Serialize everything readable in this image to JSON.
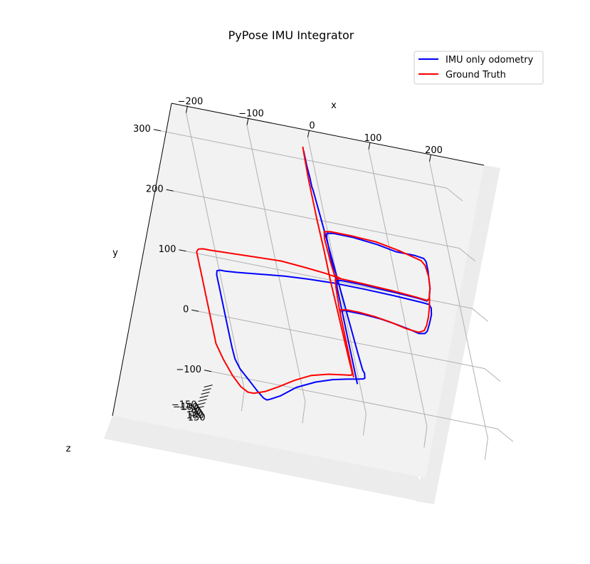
{
  "chart_data": {
    "type": "line",
    "projection": "3d",
    "title": "PyPose IMU Integrator",
    "xlabel": "x",
    "ylabel": "y",
    "zlabel": "z",
    "xlim": [
      -250,
      220
    ],
    "ylim": [
      -120,
      340
    ],
    "x_ticks": [
      "−200",
      "−100",
      "0",
      "100",
      "200"
    ],
    "y_ticks": [
      "−100",
      "0",
      "100",
      "200",
      "300"
    ],
    "z_ticks": [
      "150",
      "100",
      "50",
      "0",
      "−50",
      "−100",
      "−150"
    ],
    "grid": true,
    "legend_position": "top-right",
    "series": [
      {
        "name": "IMU only odometry",
        "color": "#0000ff",
        "points": [
          [
            -12,
            315
          ],
          [
            -12,
            305
          ],
          [
            -12,
            290
          ],
          [
            -11,
            270
          ],
          [
            -11,
            255
          ],
          [
            -10,
            250
          ],
          [
            -8,
            220
          ],
          [
            -6,
            190
          ],
          [
            -4,
            160
          ],
          [
            -2,
            130
          ],
          [
            0,
            100
          ],
          [
            2,
            70
          ],
          [
            4,
            40
          ],
          [
            6,
            10
          ],
          [
            8,
            -20
          ],
          [
            10,
            -45
          ],
          [
            12,
            -50
          ],
          [
            11,
            -58
          ],
          [
            8,
            -60
          ],
          [
            0,
            -62
          ],
          [
            -20,
            -66
          ],
          [
            -45,
            -72
          ],
          [
            -75,
            -82
          ],
          [
            -110,
            -98
          ],
          [
            -140,
            -118
          ],
          [
            -160,
            -128
          ],
          [
            -165,
            -130
          ],
          [
            -170,
            -128
          ],
          [
            -178,
            -118
          ],
          [
            -190,
            -100
          ],
          [
            -200,
            -85
          ],
          [
            -205,
            -70
          ],
          [
            -206,
            -50
          ],
          [
            -206,
            -20
          ],
          [
            -206,
            10
          ],
          [
            -206,
            50
          ],
          [
            -206,
            70
          ],
          [
            -204,
            77
          ],
          [
            -198,
            79
          ],
          [
            -190,
            79
          ],
          [
            -170,
            81
          ],
          [
            -130,
            86
          ],
          [
            -90,
            91
          ],
          [
            -50,
            94
          ],
          [
            -10,
            96
          ],
          [
            40,
            96
          ],
          [
            90,
            95
          ],
          [
            135,
            93
          ],
          [
            148,
            92
          ],
          [
            150,
            86
          ],
          [
            148,
            75
          ],
          [
            142,
            60
          ],
          [
            135,
            45
          ],
          [
            130,
            40
          ],
          [
            120,
            38
          ],
          [
            105,
            42
          ],
          [
            85,
            46
          ],
          [
            60,
            50
          ],
          [
            30,
            52
          ],
          [
            10,
            52
          ],
          [
            -2,
            52
          ],
          [
            -4,
            48
          ],
          [
            -4,
            40
          ],
          [
            -4,
            30
          ],
          [
            -4,
            -20
          ],
          [
            -4,
            -70
          ],
          [
            -4,
            48
          ],
          [
            -4,
            90
          ],
          [
            -2,
            101
          ],
          [
            5,
            103
          ],
          [
            40,
            103
          ],
          [
            90,
            101
          ],
          [
            130,
            99
          ],
          [
            145,
            97
          ],
          [
            150,
            102
          ],
          [
            155,
            120
          ],
          [
            158,
            150
          ],
          [
            158,
            165
          ],
          [
            155,
            170
          ],
          [
            140,
            172
          ],
          [
            110,
            172
          ],
          [
            80,
            178
          ],
          [
            40,
            182
          ],
          [
            10,
            182
          ],
          [
            -2,
            180
          ],
          [
            -4,
            172
          ],
          [
            -4,
            110
          ],
          [
            -2,
            101
          ],
          [
            5,
            103
          ]
        ]
      },
      {
        "name": "Ground Truth",
        "color": "#ff0000",
        "points": [
          [
            -12,
            322
          ],
          [
            -13,
            300
          ],
          [
            -14,
            270
          ],
          [
            -14,
            240
          ],
          [
            -14,
            200
          ],
          [
            -13,
            150
          ],
          [
            -13,
            100
          ],
          [
            -12,
            60
          ],
          [
            -11,
            20
          ],
          [
            -10,
            -20
          ],
          [
            -9,
            -50
          ],
          [
            -9,
            -55
          ],
          [
            -12,
            -58
          ],
          [
            -25,
            -60
          ],
          [
            -50,
            -64
          ],
          [
            -80,
            -72
          ],
          [
            -110,
            -86
          ],
          [
            -140,
            -103
          ],
          [
            -165,
            -116
          ],
          [
            -185,
            -123
          ],
          [
            -195,
            -123
          ],
          [
            -205,
            -116
          ],
          [
            -215,
            -100
          ],
          [
            -225,
            -75
          ],
          [
            -232,
            -50
          ],
          [
            -232,
            -20
          ],
          [
            -232,
            20
          ],
          [
            -232,
            60
          ],
          [
            -232,
            90
          ],
          [
            -232,
            103
          ],
          [
            -228,
            108
          ],
          [
            -220,
            110
          ],
          [
            -210,
            110
          ],
          [
            -170,
            112
          ],
          [
            -130,
            114
          ],
          [
            -90,
            116
          ],
          [
            -50,
            113
          ],
          [
            -20,
            110
          ],
          [
            0,
            107
          ],
          [
            5,
            106
          ],
          [
            40,
            105
          ],
          [
            90,
            103
          ],
          [
            130,
            100
          ],
          [
            145,
            98
          ],
          [
            150,
            102
          ],
          [
            152,
            110
          ],
          [
            148,
            90
          ],
          [
            142,
            70
          ],
          [
            136,
            55
          ],
          [
            130,
            45
          ],
          [
            120,
            40
          ],
          [
            100,
            42
          ],
          [
            75,
            48
          ],
          [
            50,
            52
          ],
          [
            25,
            54
          ],
          [
            5,
            54
          ],
          [
            -6,
            52
          ],
          [
            -8,
            45
          ],
          [
            -8,
            -40
          ],
          [
            -8,
            -60
          ],
          [
            -8,
            40
          ],
          [
            -8,
            52
          ],
          [
            -6,
            90
          ],
          [
            -4,
            103
          ],
          [
            5,
            106
          ],
          [
            -4,
            110
          ],
          [
            -6,
            130
          ],
          [
            -8,
            170
          ],
          [
            -6,
            182
          ],
          [
            5,
            184
          ],
          [
            40,
            184
          ],
          [
            80,
            182
          ],
          [
            115,
            175
          ],
          [
            140,
            168
          ],
          [
            150,
            165
          ],
          [
            155,
            158
          ],
          [
            157,
            140
          ],
          [
            155,
            120
          ],
          [
            152,
            110
          ]
        ]
      }
    ]
  }
}
